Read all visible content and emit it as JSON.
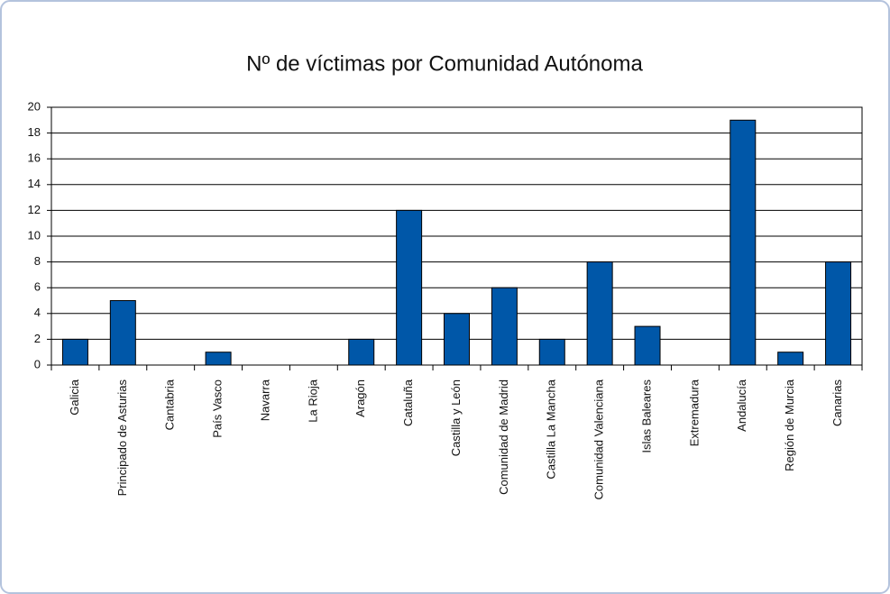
{
  "chart_data": {
    "type": "bar",
    "title": "Nº de víctimas por Comunidad Autónoma",
    "categories": [
      "Galicia",
      "Principado de Asturias",
      "Cantabria",
      "País Vasco",
      "Navarra",
      "La Rioja",
      "Aragón",
      "Cataluña",
      "Castilla y León",
      "Comunidad de Madrid",
      "Castilla La Mancha",
      "Comunidad Valenciana",
      "Islas Baleares",
      "Extremadura",
      "Andalucía",
      "Región de Murcia",
      "Canarias"
    ],
    "values": [
      2,
      5,
      0,
      1,
      0,
      0,
      2,
      12,
      4,
      6,
      2,
      8,
      3,
      0,
      19,
      1,
      8
    ],
    "color": "#0057a8",
    "ylim": [
      0,
      20
    ],
    "yticks": [
      0,
      2,
      4,
      6,
      8,
      10,
      12,
      14,
      16,
      18,
      20
    ],
    "grid": true
  }
}
